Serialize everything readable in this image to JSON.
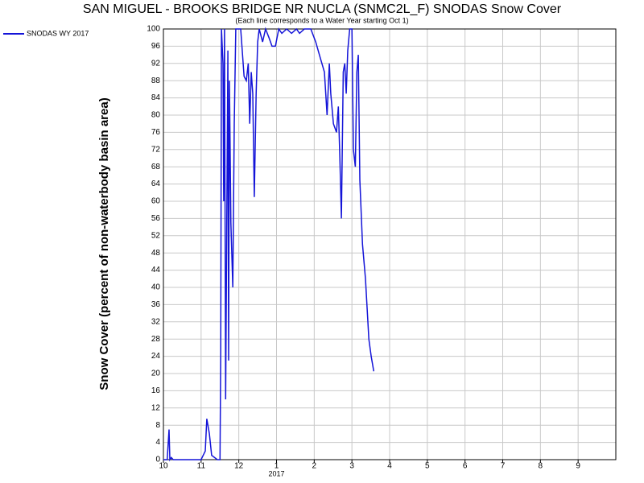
{
  "chart_data": {
    "type": "line",
    "title": "SAN MIGUEL - BROOKS BRIDGE NR NUCLA (SNMC2L_F) SNODAS Snow Cover",
    "subtitle": "(Each line corresponds to a Water Year starting Oct 1)",
    "y_label": "Snow Cover (percent of non-waterbody basin area)",
    "year_label": "2017",
    "x": [
      0,
      0.1,
      0.15,
      0.17,
      0.21,
      0.26,
      0.8,
      1.0,
      1.11,
      1.15,
      1.22,
      1.28,
      1.43,
      1.5,
      1.52,
      1.54,
      1.58,
      1.6,
      1.62,
      1.65,
      1.67,
      1.71,
      1.73,
      1.75,
      1.79,
      1.84,
      1.88,
      1.92,
      2.05,
      2.14,
      2.2,
      2.25,
      2.29,
      2.33,
      2.37,
      2.41,
      2.46,
      2.5,
      2.54,
      2.63,
      2.71,
      2.8,
      2.88,
      2.97,
      3.06,
      3.14,
      3.27,
      3.4,
      3.53,
      3.61,
      3.74,
      3.82,
      3.91,
      4.04,
      4.17,
      4.27,
      4.34,
      4.4,
      4.44,
      4.51,
      4.59,
      4.64,
      4.68,
      4.72,
      4.77,
      4.81,
      4.85,
      4.89,
      4.94,
      5.0,
      5.04,
      5.09,
      5.13,
      5.17,
      5.21,
      5.28,
      5.36,
      5.45,
      5.51,
      5.58
    ],
    "series": [
      {
        "name": "SNODAS WY 2017",
        "color": "#1414d8",
        "values": [
          0,
          0,
          7,
          0,
          0.5,
          0,
          0,
          0,
          2,
          9.5,
          6,
          1,
          0,
          0,
          25,
          100,
          92,
          60,
          100,
          14,
          40,
          95,
          23,
          88,
          55,
          40,
          78,
          100,
          100,
          89,
          88,
          92,
          78,
          90,
          85,
          61,
          85,
          97,
          100,
          97,
          100,
          98,
          96,
          96,
          100,
          99,
          100,
          99,
          100,
          99,
          100,
          100,
          100,
          97,
          93,
          90,
          80,
          92,
          85,
          78,
          76,
          82,
          70,
          56,
          90,
          92,
          85,
          95,
          100,
          100,
          72,
          68,
          90,
          94,
          65,
          50,
          42,
          28,
          24,
          20.5
        ]
      }
    ],
    "xlim": [
      0,
      12
    ],
    "xticks": [
      {
        "value": 0,
        "label": "10"
      },
      {
        "value": 1,
        "label": "11"
      },
      {
        "value": 2,
        "label": "12"
      },
      {
        "value": 3,
        "label": "1"
      },
      {
        "value": 4,
        "label": "2"
      },
      {
        "value": 5,
        "label": "3"
      },
      {
        "value": 6,
        "label": "4"
      },
      {
        "value": 7,
        "label": "5"
      },
      {
        "value": 8,
        "label": "6"
      },
      {
        "value": 9,
        "label": "7"
      },
      {
        "value": 10,
        "label": "8"
      },
      {
        "value": 11,
        "label": "9"
      }
    ],
    "ylim": [
      0,
      100
    ],
    "yticks": [
      0,
      4,
      8,
      12,
      16,
      20,
      24,
      28,
      32,
      36,
      40,
      44,
      48,
      52,
      56,
      60,
      64,
      68,
      72,
      76,
      80,
      84,
      88,
      92,
      96,
      100
    ],
    "grid": true,
    "legend": "top-left"
  }
}
